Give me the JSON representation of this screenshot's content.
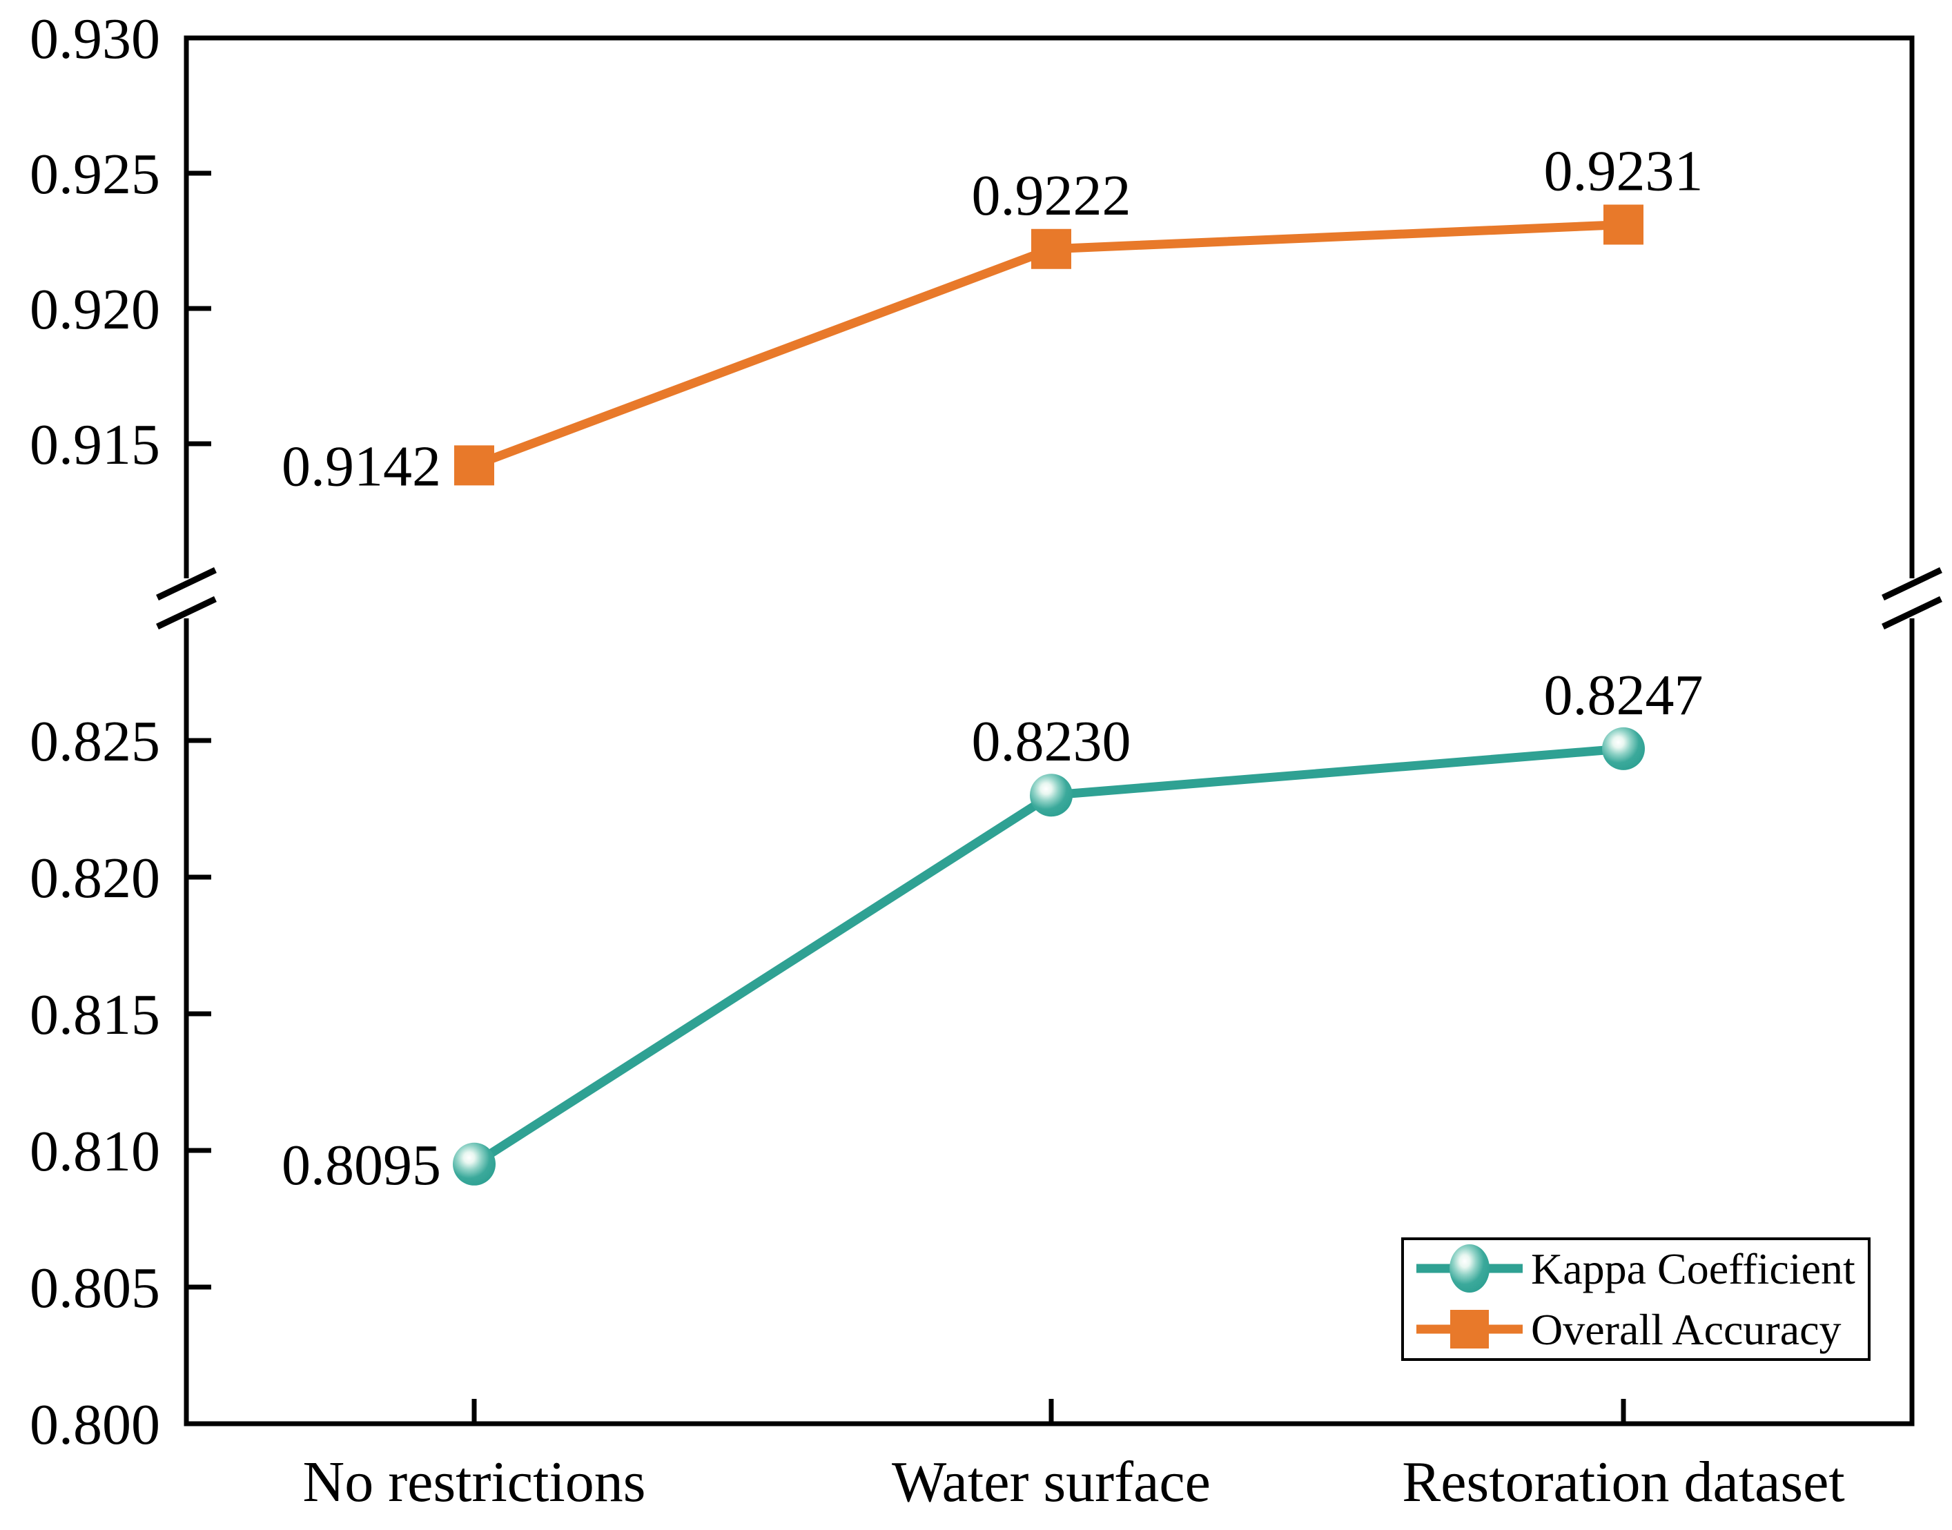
{
  "figure": {
    "background_color": "#FFFFFF",
    "axis_color": "#000000",
    "text_color": "#000000"
  },
  "chart_data": {
    "type": "line",
    "title": "",
    "xlabel": "",
    "ylabel": "",
    "grid": false,
    "categories": [
      "No restrictions",
      "Water surface",
      "Restoration dataset"
    ],
    "series": [
      {
        "name": "Kappa Coefficient",
        "color": "#2FA193",
        "marker": "sphere",
        "values": [
          0.8095,
          0.823,
          0.8247
        ],
        "point_labels": [
          "0.8095",
          "0.8230",
          "0.8247"
        ]
      },
      {
        "name": "Overall Accuracy",
        "color": "#E8792A",
        "marker": "square",
        "values": [
          0.9142,
          0.9222,
          0.9231
        ],
        "point_labels": [
          "0.9142",
          "0.9222",
          "0.9231"
        ]
      }
    ],
    "y_axis": {
      "broken": true,
      "upper_range": [
        0.9104,
        0.93
      ],
      "lower_range": [
        0.8,
        0.8292
      ],
      "upper_ticks": [
        "0.930",
        "0.925",
        "0.920",
        "0.915"
      ],
      "lower_ticks": [
        "0.825",
        "0.820",
        "0.815",
        "0.810",
        "0.805",
        "0.800"
      ],
      "tick_step": 0.005
    },
    "legend": {
      "position": "bottom-right",
      "entries": [
        "Kappa Coefficient",
        "Overall Accuracy"
      ]
    }
  }
}
